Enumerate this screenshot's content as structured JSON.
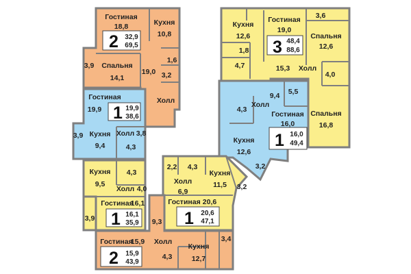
{
  "colors": {
    "orange": "#f6b784",
    "yellow": "#fbee8c",
    "blue": "#a8d9f3",
    "wall": "#7f7f7f"
  },
  "apartments": [
    {
      "id": "a",
      "type": "2",
      "living_area": "32,9",
      "total_area": "69,5",
      "color": "orange",
      "rooms": [
        {
          "name": "Гостиная",
          "area": "18,8"
        },
        {
          "name": "Кухня",
          "area": "10,8"
        },
        {
          "name": "Спальня",
          "area": "14,1"
        },
        {
          "name": "",
          "area": "3,9"
        },
        {
          "name": "",
          "area": "19,0"
        },
        {
          "name": "",
          "area": "1,6"
        },
        {
          "name": "",
          "area": "3,2"
        },
        {
          "name": "Холл",
          "area": ""
        }
      ]
    },
    {
      "id": "b",
      "type": "1",
      "living_area": "19,9",
      "total_area": "38,6",
      "color": "blue",
      "rooms": [
        {
          "name": "Гостиная",
          "area": "19,9"
        },
        {
          "name": "Кухня",
          "area": "9,4"
        },
        {
          "name": "Холл",
          "area": "3,8"
        },
        {
          "name": "",
          "area": "3,9"
        },
        {
          "name": "",
          "area": "4,3"
        }
      ]
    },
    {
      "id": "c",
      "type": "1",
      "living_area": "16,1",
      "total_area": "35,9",
      "color": "yellow",
      "rooms": [
        {
          "name": "Кухня",
          "area": "9,5"
        },
        {
          "name": "",
          "area": "4,3"
        },
        {
          "name": "Холл",
          "area": "4,0"
        },
        {
          "name": "Гостиная",
          "area": "16,1"
        },
        {
          "name": "",
          "area": "3,9"
        }
      ]
    },
    {
      "id": "d",
      "type": "2",
      "living_area": "15,9",
      "total_area": "43,9",
      "color": "orange",
      "rooms": [
        {
          "name": "Гостиная",
          "area": "15,9"
        },
        {
          "name": "Холл",
          "area": ""
        },
        {
          "name": "",
          "area": "4,3"
        },
        {
          "name": "Кухня",
          "area": "12,7"
        },
        {
          "name": "",
          "area": "9,3"
        },
        {
          "name": "",
          "area": "3,4"
        }
      ]
    },
    {
      "id": "e",
      "type": "1",
      "living_area": "20,6",
      "total_area": "47,1",
      "color": "yellow",
      "rooms": [
        {
          "name": "",
          "area": "2,2"
        },
        {
          "name": "",
          "area": "4,3"
        },
        {
          "name": "Холл",
          "area": "6,9"
        },
        {
          "name": "Кухня",
          "area": "11,5"
        },
        {
          "name": "",
          "area": "3,2"
        },
        {
          "name": "Гостиная",
          "area": "20,6"
        }
      ]
    },
    {
      "id": "f",
      "type": "1",
      "living_area": "16,0",
      "total_area": "49,4",
      "color": "blue",
      "rooms": [
        {
          "name": "",
          "area": "5,5"
        },
        {
          "name": "",
          "area": "9,4"
        },
        {
          "name": "Холл",
          "area": ""
        },
        {
          "name": "",
          "area": "4,3"
        },
        {
          "name": "Гостиная",
          "area": "16,0"
        },
        {
          "name": "Кухня",
          "area": "12,6"
        },
        {
          "name": "",
          "area": "3,2"
        }
      ]
    },
    {
      "id": "g",
      "type": "3",
      "living_area": "48,4",
      "total_area": "88,6",
      "color": "yellow",
      "rooms": [
        {
          "name": "Кухня",
          "area": "12,6"
        },
        {
          "name": "Гостиная",
          "area": "19,0"
        },
        {
          "name": "",
          "area": "1,8"
        },
        {
          "name": "",
          "area": "4,7"
        },
        {
          "name": "",
          "area": "15,3"
        },
        {
          "name": "Холл",
          "area": ""
        },
        {
          "name": "",
          "area": "3,6"
        },
        {
          "name": "Спальня",
          "area": "12,6"
        },
        {
          "name": "",
          "area": "4,0"
        },
        {
          "name": "Спальня",
          "area": "16,8"
        }
      ]
    }
  ]
}
